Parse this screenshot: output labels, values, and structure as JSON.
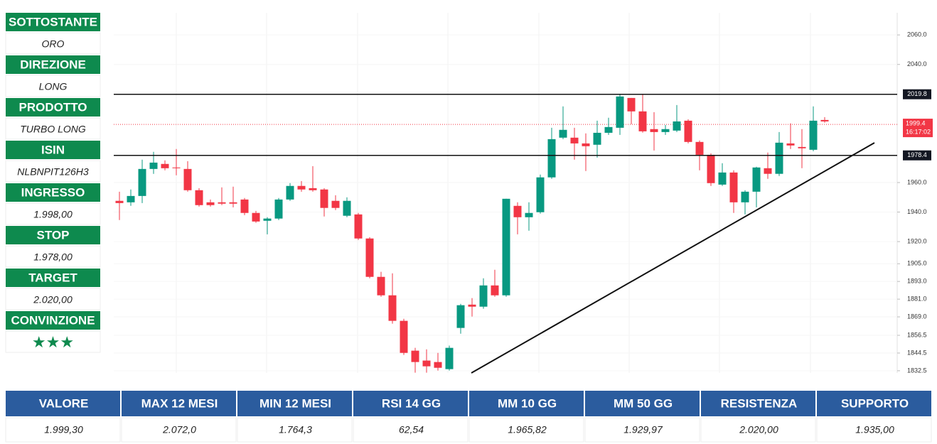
{
  "sidebar": [
    {
      "label": "SOTTOSTANTE",
      "value": "ORO"
    },
    {
      "label": "DIREZIONE",
      "value": "LONG"
    },
    {
      "label": "PRODOTTO",
      "value": "TURBO LONG"
    },
    {
      "label": "ISIN",
      "value": "NLBNPIT126H3"
    },
    {
      "label": "INGRESSO",
      "value": "1.998,00"
    },
    {
      "label": "STOP",
      "value": "1.978,00"
    },
    {
      "label": "TARGET",
      "value": "2.020,00"
    },
    {
      "label": "CONVINZIONE",
      "value": "★★★"
    }
  ],
  "chart_data": {
    "type": "candlestick",
    "up_color": "#089981",
    "down_color": "#f23645",
    "open": [
      1947.6,
      1946.6,
      1950.9,
      1969.2,
      1972.6,
      1970.2,
      1969.2,
      1954.8,
      1946.6,
      1946.6,
      1946.6,
      1948.5,
      1939.4,
      1934.1,
      1935.6,
      1948.5,
      1957.7,
      1956.2,
      1955.3,
      1947.6,
      1937.5,
      1938.4,
      1922.1,
      1896.1,
      1883.6,
      1866.3,
      1846.1,
      1839.4,
      1838.4,
      1833.6,
      1861.5,
      1877.3,
      1875.9,
      1890.3,
      1883.6,
      1944.2,
      1936.5,
      1939.9,
      1963.5,
      1990.4,
      1990.4,
      1986.5,
      1985.6,
      1993.7,
      1997.1,
      2017.3,
      2008.2,
      1996.2,
      1994.2,
      1995.2,
      2001.9,
      1987.5,
      1978.8,
      1958.6,
      1966.8,
      1946.6,
      1953.8,
      1969.7,
      1965.9,
      1986.5,
      1984.1,
      1982.2,
      2002.4
    ],
    "high": [
      1953.8,
      1955.3,
      1975.5,
      1980.8,
      1975.0,
      1982.7,
      1974.5,
      1956.2,
      1948.5,
      1956.7,
      1957.2,
      1949.5,
      1940.8,
      1936.5,
      1949.5,
      1959.6,
      1961.0,
      1971.1,
      1956.2,
      1951.4,
      1950.0,
      1939.4,
      1923.0,
      1899.5,
      1898.5,
      1867.7,
      1848.0,
      1847.0,
      1844.6,
      1849.5,
      1877.8,
      1881.7,
      1895.1,
      1900.9,
      1949.0,
      1946.6,
      1946.6,
      1965.4,
      1997.1,
      2011.6,
      1997.1,
      1993.3,
      2001.9,
      2003.9,
      2019.7,
      2017.3,
      2019.7,
      2007.7,
      1999.0,
      2012.5,
      2002.9,
      1988.5,
      1979.8,
      1973.1,
      1968.3,
      1954.8,
      1970.7,
      1980.3,
      1994.2,
      2000.1,
      1996.2,
      2011.6,
      2004.3
    ],
    "low": [
      1934.6,
      1944.2,
      1946.1,
      1965.9,
      1968.3,
      1964.9,
      1953.8,
      1943.7,
      1943.7,
      1944.7,
      1943.2,
      1937.9,
      1932.7,
      1924.9,
      1934.6,
      1947.6,
      1953.8,
      1953.8,
      1937.0,
      1941.3,
      1936.5,
      1921.1,
      1895.1,
      1882.6,
      1864.4,
      1843.2,
      1831.2,
      1831.2,
      1832.6,
      1832.6,
      1857.6,
      1869.2,
      1874.5,
      1882.6,
      1882.6,
      1924.9,
      1927.4,
      1938.9,
      1962.5,
      1989.4,
      1975.5,
      1967.8,
      1976.9,
      1992.3,
      1992.3,
      1999.5,
      1993.8,
      1981.7,
      1992.3,
      1994.2,
      1986.5,
      1968.3,
      1957.7,
      1957.7,
      1939.4,
      1938.4,
      1943.2,
      1962.5,
      1964.4,
      1982.7,
      1969.7,
      1981.2,
      2000.5
    ],
    "close": [
      1946.1,
      1950.9,
      1969.2,
      1973.5,
      1969.7,
      1969.7,
      1954.8,
      1944.7,
      1944.7,
      1945.7,
      1945.7,
      1939.4,
      1933.6,
      1935.6,
      1948.5,
      1957.7,
      1955.3,
      1954.8,
      1942.8,
      1942.8,
      1947.6,
      1922.1,
      1896.1,
      1883.6,
      1866.3,
      1844.6,
      1838.4,
      1835.5,
      1834.5,
      1848.0,
      1876.9,
      1875.9,
      1890.3,
      1883.6,
      1949.0,
      1936.5,
      1939.4,
      1963.5,
      1989.4,
      1995.7,
      1986.5,
      1984.6,
      1993.7,
      1997.6,
      2018.3,
      2008.2,
      1994.7,
      1994.2,
      1996.2,
      2001.4,
      1987.5,
      1978.8,
      1959.6,
      1966.8,
      1946.6,
      1953.8,
      1970.2,
      1965.9,
      1987.0,
      1985.1,
      1983.2,
      2001.9,
      2001.4
    ],
    "ylim": [
      1831,
      2075
    ],
    "yticks": [
      {
        "value": 2060,
        "label": "2060.0"
      },
      {
        "value": 2040,
        "label": "2040.0"
      },
      {
        "value": 1960,
        "label": "1960.0"
      },
      {
        "value": 1940,
        "label": "1940.0"
      },
      {
        "value": 1920,
        "label": "1920.0"
      },
      {
        "value": 1905,
        "label": "1905.0"
      },
      {
        "value": 1893,
        "label": "1893.0"
      },
      {
        "value": 1881,
        "label": "1881.0"
      },
      {
        "value": 1869,
        "label": "1869.0"
      },
      1856.5,
      1844.5,
      1832.5
    ],
    "grid": true,
    "horizontal_lines": [
      2019.8,
      1978.4
    ],
    "last_price": 1999.4,
    "countdown": "16:17:02"
  },
  "table": {
    "header": [
      "VALORE",
      "MAX 12 MESI",
      "MIN 12 MESI",
      "RSI 14 GG",
      "MM 10 GG",
      "MM 50 GG",
      "RESISTENZA",
      "SUPPORTO"
    ],
    "rows": [
      [
        "1.999,30",
        "2.072,0",
        "1.764,3",
        "62,54",
        "1.965,82",
        "1.929,97",
        "2.020,00",
        "1.935,00"
      ]
    ]
  }
}
